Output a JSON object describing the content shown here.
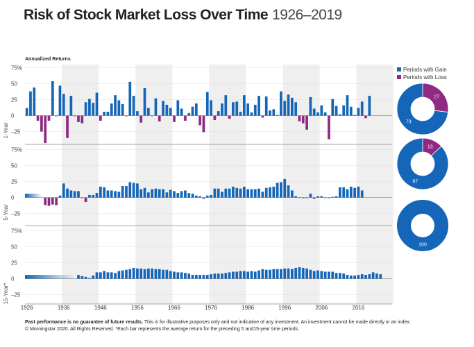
{
  "title": {
    "main": "Risk of Stock Market Loss Over Time",
    "range": "1926–2019"
  },
  "chart_data": {
    "type": "bar",
    "subtitle": "Annualized Returns",
    "x_ticks": [
      "1926",
      "1936",
      "1946",
      "1956",
      "1966",
      "1976",
      "1986",
      "1996",
      "2006",
      "2016"
    ],
    "y_ticks": [
      "75%",
      "50",
      "25",
      "0",
      "–25"
    ],
    "colors": {
      "gain": "#1565b8",
      "loss": "#8e2a82",
      "band": "#efefef"
    },
    "panels": [
      {
        "name": "1-Year",
        "ylim": [
          -45,
          80
        ],
        "start_year": 1926,
        "values": [
          12,
          38,
          44,
          -8,
          -25,
          -43,
          -8,
          54,
          -1,
          47,
          34,
          -35,
          31,
          -1,
          -10,
          -12,
          21,
          26,
          20,
          36,
          -8,
          6,
          6,
          19,
          32,
          24,
          18,
          -1,
          53,
          31,
          7,
          -11,
          43,
          12,
          0,
          27,
          -9,
          23,
          17,
          12,
          -10,
          24,
          11,
          -8,
          4,
          14,
          19,
          -15,
          -26,
          37,
          24,
          -7,
          7,
          19,
          32,
          -5,
          21,
          22,
          6,
          32,
          19,
          5,
          17,
          31,
          -3,
          30,
          8,
          10,
          1,
          38,
          23,
          33,
          28,
          21,
          -9,
          -12,
          -22,
          29,
          11,
          5,
          16,
          5,
          -37,
          26,
          15,
          2,
          16,
          32,
          14,
          1,
          12,
          22,
          -4,
          31
        ]
      },
      {
        "name": "5-Year",
        "ylim": [
          -45,
          80
        ],
        "start_year": 1931,
        "values": [
          -12,
          -13,
          -11,
          -12,
          3,
          22,
          14,
          11,
          10,
          10,
          -1,
          -7,
          4,
          4,
          7,
          17,
          16,
          11,
          11,
          10,
          9,
          18,
          18,
          24,
          23,
          22,
          13,
          15,
          8,
          13,
          14,
          13,
          13,
          8,
          12,
          10,
          7,
          10,
          11,
          7,
          6,
          3,
          2,
          -2,
          3,
          4,
          14,
          14,
          9,
          14,
          14,
          17,
          15,
          14,
          17,
          13,
          13,
          13,
          14,
          9,
          15,
          16,
          17,
          23,
          24,
          29,
          19,
          11,
          2,
          0,
          -1,
          -1,
          6,
          -2,
          2,
          2,
          0,
          -1,
          1,
          2,
          16,
          16,
          13,
          17,
          15,
          17,
          11
        ]
      },
      {
        "name": "15-Year*",
        "ylim": [
          -45,
          80
        ],
        "start_year": 1940,
        "values": [
          6,
          4,
          3,
          1,
          5,
          10,
          10,
          12,
          10,
          10,
          9,
          12,
          13,
          14,
          15,
          17,
          16,
          16,
          15,
          16,
          16,
          15,
          15,
          14,
          14,
          12,
          11,
          10,
          10,
          9,
          8,
          6,
          6,
          6,
          6,
          6,
          7,
          8,
          8,
          8,
          9,
          10,
          11,
          11,
          12,
          12,
          11,
          12,
          11,
          13,
          15,
          14,
          14,
          15,
          15,
          15,
          16,
          16,
          15,
          17,
          18,
          17,
          16,
          14,
          12,
          13,
          12,
          11,
          11,
          11,
          9,
          9,
          8,
          6,
          5,
          5,
          6,
          7,
          6,
          7,
          10,
          8,
          7
        ]
      }
    ],
    "donuts": [
      {
        "name": "1-Year",
        "gain": 73,
        "loss": 27
      },
      {
        "name": "5-Year",
        "gain": 87,
        "loss": 13
      },
      {
        "name": "15-Year",
        "gain": 100,
        "loss": 0
      }
    ],
    "legend": [
      "Periods with Gain",
      "Periods with Loss"
    ]
  },
  "footer": {
    "bold": "Past performance is no guarantee of future results.",
    "line1": " This is for illustrative purposes only and not indicative of any investment. An investment cannot be made directly in an index.",
    "line2": "© Morningstar 2020. All Rights Reserved.  *Each bar represents the average return for the preceding 5 and15-year time periods."
  }
}
